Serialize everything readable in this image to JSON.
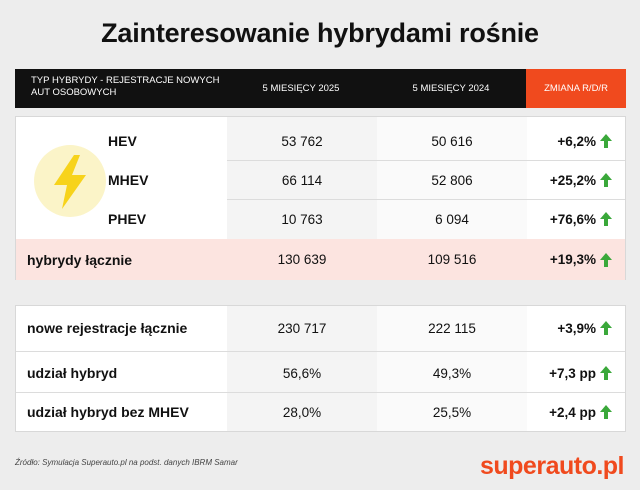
{
  "title": "Zainteresowanie hybrydami rośnie",
  "header": {
    "col_type": "TYP HYBRYDY - REJESTRACJE NOWYCH AUT OSOBOWYCH",
    "col_2025": "5 MIESIĘCY 2025",
    "col_2024": "5 MIESIĘCY 2024",
    "col_change": "ZMIANA R/D/R"
  },
  "hybrids": [
    {
      "label": "HEV",
      "v2025": "53 762",
      "v2024": "50 616",
      "change": "+6,2%"
    },
    {
      "label": "MHEV",
      "v2025": "66 114",
      "v2024": "52 806",
      "change": "+25,2%"
    },
    {
      "label": "PHEV",
      "v2025": "10 763",
      "v2024": "6 094",
      "change": "+76,6%"
    }
  ],
  "hybrids_total": {
    "label": "hybrydy łącznie",
    "v2025": "130 639",
    "v2024": "109 516",
    "change": "+19,3%"
  },
  "summary": [
    {
      "label": "nowe rejestracje łącznie",
      "v2025": "230 717",
      "v2024": "222 115",
      "change": "+3,9%"
    },
    {
      "label": "udział hybryd",
      "v2025": "56,6%",
      "v2024": "49,3%",
      "change": "+7,3 pp"
    },
    {
      "label": "udział hybryd bez MHEV",
      "v2025": "28,0%",
      "v2024": "25,5%",
      "change": "+2,4 pp"
    }
  ],
  "icons": {
    "lightning": "lightning-bolt-icon",
    "arrow": "arrow-up-icon"
  },
  "colors": {
    "accent": "#f04a1e",
    "arrow_green": "#3aa83a",
    "bolt_yellow": "#f7d31b",
    "total_bg": "#fce4e0"
  },
  "source": "Źródło: Symulacja Superauto.pl na podst. danych IBRM Samar",
  "brand": "superauto.pl"
}
